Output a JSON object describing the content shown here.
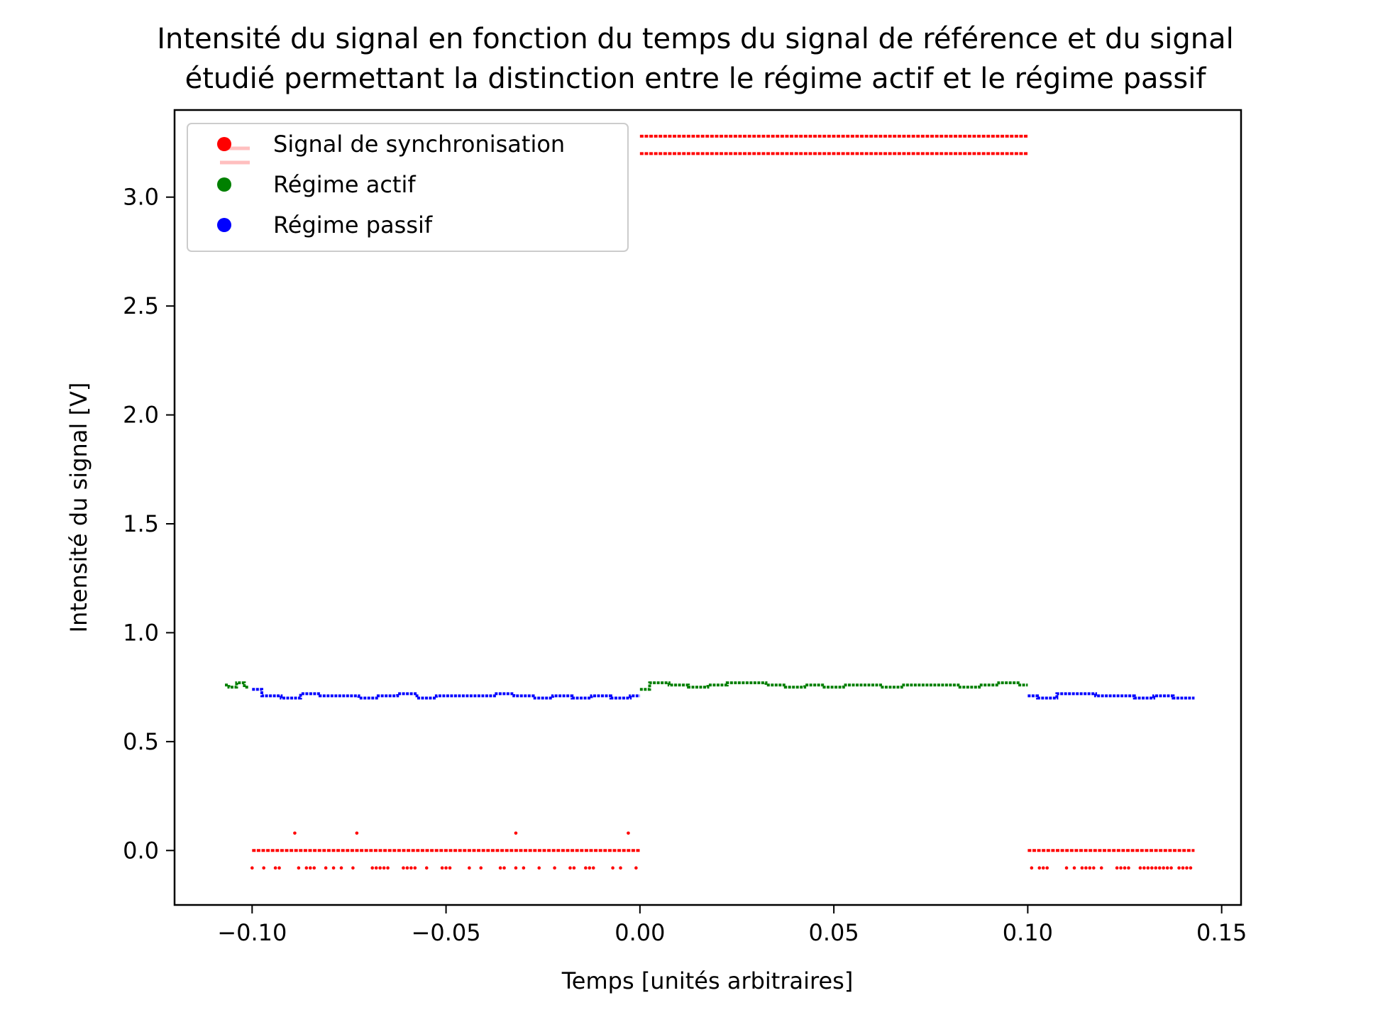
{
  "chart_data": {
    "type": "scatter",
    "title_line1": "Intensité du signal en fonction du temps du signal de référence et du signal",
    "title_line2": "étudié permettant la distinction entre le régime actif et le régime passif",
    "xlabel": "Temps [unités arbitraires]",
    "ylabel": "Intensité du signal [V]",
    "xlim": [
      -0.12,
      0.155
    ],
    "ylim": [
      -0.25,
      3.4
    ],
    "xticks": [
      {
        "value": -0.1,
        "label": "−0.10"
      },
      {
        "value": -0.05,
        "label": "−0.05"
      },
      {
        "value": 0.0,
        "label": "0.00"
      },
      {
        "value": 0.05,
        "label": "0.05"
      },
      {
        "value": 0.1,
        "label": "0.10"
      },
      {
        "value": 0.15,
        "label": "0.15"
      }
    ],
    "yticks": [
      {
        "value": 0.0,
        "label": "0.0"
      },
      {
        "value": 0.5,
        "label": "0.5"
      },
      {
        "value": 1.0,
        "label": "1.0"
      },
      {
        "value": 1.5,
        "label": "1.5"
      },
      {
        "value": 2.0,
        "label": "2.0"
      },
      {
        "value": 2.5,
        "label": "2.5"
      },
      {
        "value": 3.0,
        "label": "3.0"
      }
    ],
    "grid": false,
    "legend_position": "top-left",
    "series": [
      {
        "name": "Signal de synchronisation",
        "color": "#ff0000",
        "segments": [
          {
            "x_start": -0.1,
            "x_end": 0.0,
            "y": 0.0
          },
          {
            "x_start": 0.0,
            "x_end": 0.1,
            "y": 3.28
          },
          {
            "x_start": 0.0,
            "x_end": 0.1,
            "y": 3.2
          },
          {
            "x_start": 0.1,
            "x_end": 0.143,
            "y": 0.0
          }
        ],
        "points": [
          {
            "x": -0.089,
            "y": 0.08
          },
          {
            "x": -0.073,
            "y": 0.08
          },
          {
            "x": -0.032,
            "y": 0.08
          },
          {
            "x": -0.003,
            "y": 0.08
          },
          {
            "x": -0.1,
            "y": -0.08
          },
          {
            "x": -0.097,
            "y": -0.08
          },
          {
            "x": -0.094,
            "y": -0.08
          },
          {
            "x": -0.093,
            "y": -0.08
          },
          {
            "x": -0.088,
            "y": -0.08
          },
          {
            "x": -0.086,
            "y": -0.08
          },
          {
            "x": -0.085,
            "y": -0.08
          },
          {
            "x": -0.084,
            "y": -0.08
          },
          {
            "x": -0.081,
            "y": -0.08
          },
          {
            "x": -0.079,
            "y": -0.08
          },
          {
            "x": -0.077,
            "y": -0.08
          },
          {
            "x": -0.074,
            "y": -0.08
          },
          {
            "x": -0.069,
            "y": -0.08
          },
          {
            "x": -0.068,
            "y": -0.08
          },
          {
            "x": -0.067,
            "y": -0.08
          },
          {
            "x": -0.066,
            "y": -0.08
          },
          {
            "x": -0.065,
            "y": -0.08
          },
          {
            "x": -0.061,
            "y": -0.08
          },
          {
            "x": -0.06,
            "y": -0.08
          },
          {
            "x": -0.059,
            "y": -0.08
          },
          {
            "x": -0.058,
            "y": -0.08
          },
          {
            "x": -0.055,
            "y": -0.08
          },
          {
            "x": -0.051,
            "y": -0.08
          },
          {
            "x": -0.05,
            "y": -0.08
          },
          {
            "x": -0.049,
            "y": -0.08
          },
          {
            "x": -0.044,
            "y": -0.08
          },
          {
            "x": -0.041,
            "y": -0.08
          },
          {
            "x": -0.036,
            "y": -0.08
          },
          {
            "x": -0.035,
            "y": -0.08
          },
          {
            "x": -0.032,
            "y": -0.08
          },
          {
            "x": -0.03,
            "y": -0.08
          },
          {
            "x": -0.026,
            "y": -0.08
          },
          {
            "x": -0.022,
            "y": -0.08
          },
          {
            "x": -0.018,
            "y": -0.08
          },
          {
            "x": -0.017,
            "y": -0.08
          },
          {
            "x": -0.014,
            "y": -0.08
          },
          {
            "x": -0.013,
            "y": -0.08
          },
          {
            "x": -0.012,
            "y": -0.08
          },
          {
            "x": -0.007,
            "y": -0.08
          },
          {
            "x": -0.005,
            "y": -0.08
          },
          {
            "x": -0.001,
            "y": -0.08
          },
          {
            "x": 0.101,
            "y": -0.08
          },
          {
            "x": 0.103,
            "y": -0.08
          },
          {
            "x": 0.104,
            "y": -0.08
          },
          {
            "x": 0.105,
            "y": -0.08
          },
          {
            "x": 0.11,
            "y": -0.08
          },
          {
            "x": 0.112,
            "y": -0.08
          },
          {
            "x": 0.114,
            "y": -0.08
          },
          {
            "x": 0.115,
            "y": -0.08
          },
          {
            "x": 0.116,
            "y": -0.08
          },
          {
            "x": 0.117,
            "y": -0.08
          },
          {
            "x": 0.119,
            "y": -0.08
          },
          {
            "x": 0.123,
            "y": -0.08
          },
          {
            "x": 0.124,
            "y": -0.08
          },
          {
            "x": 0.125,
            "y": -0.08
          },
          {
            "x": 0.126,
            "y": -0.08
          },
          {
            "x": 0.129,
            "y": -0.08
          },
          {
            "x": 0.13,
            "y": -0.08
          },
          {
            "x": 0.131,
            "y": -0.08
          },
          {
            "x": 0.132,
            "y": -0.08
          },
          {
            "x": 0.133,
            "y": -0.08
          },
          {
            "x": 0.134,
            "y": -0.08
          },
          {
            "x": 0.135,
            "y": -0.08
          },
          {
            "x": 0.136,
            "y": -0.08
          },
          {
            "x": 0.137,
            "y": -0.08
          },
          {
            "x": 0.139,
            "y": -0.08
          },
          {
            "x": 0.14,
            "y": -0.08
          },
          {
            "x": 0.141,
            "y": -0.08
          },
          {
            "x": 0.142,
            "y": -0.08
          }
        ]
      },
      {
        "name": "Régime actif",
        "color": "#008000",
        "traces": [
          {
            "x": [
              -0.107,
              -0.105,
              -0.103,
              -0.101
            ],
            "y": [
              0.76,
              0.75,
              0.77,
              0.75
            ]
          },
          {
            "x": [
              0.0,
              0.005,
              0.01,
              0.015,
              0.02,
              0.025,
              0.03,
              0.035,
              0.04,
              0.045,
              0.05,
              0.055,
              0.06,
              0.065,
              0.07,
              0.075,
              0.08,
              0.085,
              0.09,
              0.095,
              0.1
            ],
            "y": [
              0.74,
              0.77,
              0.76,
              0.75,
              0.76,
              0.77,
              0.77,
              0.76,
              0.75,
              0.76,
              0.75,
              0.76,
              0.76,
              0.75,
              0.76,
              0.76,
              0.76,
              0.75,
              0.76,
              0.77,
              0.76
            ]
          }
        ]
      },
      {
        "name": "Régime passif",
        "color": "#0000ff",
        "traces": [
          {
            "x": [
              -0.1,
              -0.095,
              -0.09,
              -0.085,
              -0.08,
              -0.075,
              -0.07,
              -0.065,
              -0.06,
              -0.055,
              -0.05,
              -0.045,
              -0.04,
              -0.035,
              -0.03,
              -0.025,
              -0.02,
              -0.015,
              -0.01,
              -0.005,
              0.0
            ],
            "y": [
              0.74,
              0.71,
              0.7,
              0.72,
              0.71,
              0.71,
              0.7,
              0.71,
              0.72,
              0.7,
              0.71,
              0.71,
              0.71,
              0.72,
              0.71,
              0.7,
              0.71,
              0.7,
              0.71,
              0.7,
              0.71
            ]
          },
          {
            "x": [
              0.1,
              0.105,
              0.11,
              0.115,
              0.12,
              0.125,
              0.13,
              0.135,
              0.14,
              0.143
            ],
            "y": [
              0.71,
              0.7,
              0.72,
              0.72,
              0.71,
              0.71,
              0.7,
              0.71,
              0.7,
              0.7
            ]
          }
        ]
      }
    ]
  }
}
